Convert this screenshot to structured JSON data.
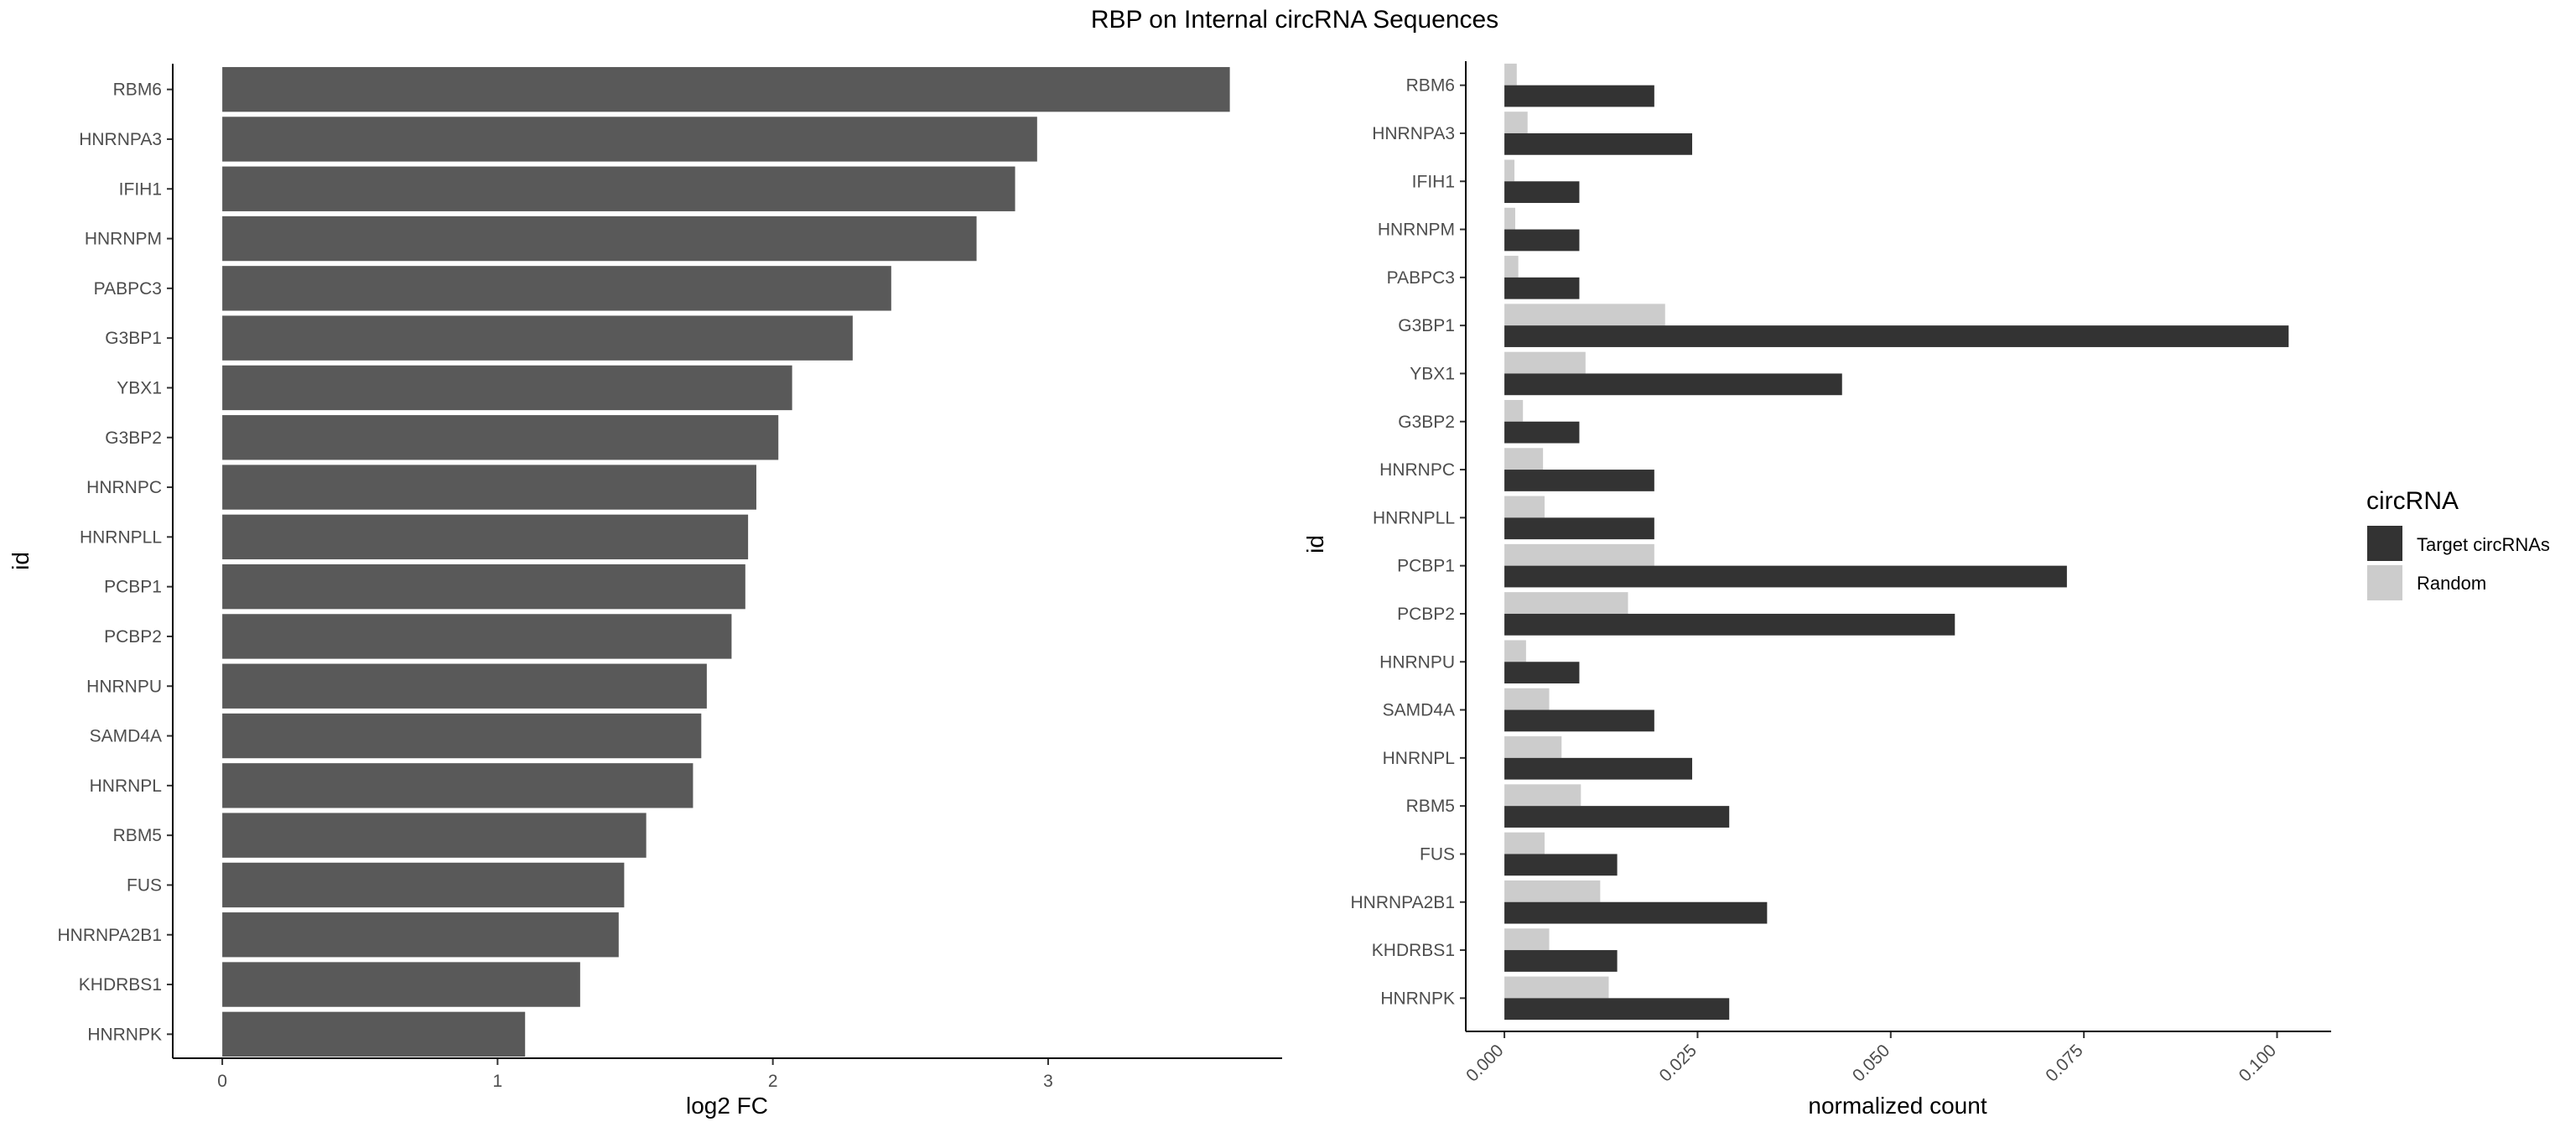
{
  "title": "RBP on Internal circRNA Sequences",
  "chart_data": [
    {
      "type": "bar",
      "orientation": "horizontal",
      "categories": [
        "RBM6",
        "HNRNPA3",
        "IFIH1",
        "HNRNPM",
        "PABPC3",
        "G3BP1",
        "YBX1",
        "G3BP2",
        "HNRNPC",
        "HNRNPLL",
        "PCBP1",
        "PCBP2",
        "HNRNPU",
        "SAMD4A",
        "HNRNPL",
        "RBM5",
        "FUS",
        "HNRNPA2B1",
        "KHDRBS1",
        "HNRNPK"
      ],
      "values": [
        3.66,
        2.96,
        2.88,
        2.74,
        2.43,
        2.29,
        2.07,
        2.02,
        1.94,
        1.91,
        1.9,
        1.85,
        1.76,
        1.74,
        1.71,
        1.54,
        1.46,
        1.44,
        1.3,
        1.1
      ],
      "xlabel": "log2 FC",
      "ylabel": "id",
      "xlim": [
        -0.18,
        3.85
      ],
      "xticks": [
        "0",
        "1",
        "2",
        "3"
      ],
      "bar_color": "#595959",
      "grid": false
    },
    {
      "type": "bar",
      "orientation": "horizontal",
      "grouped": true,
      "categories": [
        "RBM6",
        "HNRNPA3",
        "IFIH1",
        "HNRNPM",
        "PABPC3",
        "G3BP1",
        "YBX1",
        "G3BP2",
        "HNRNPC",
        "HNRNPLL",
        "PCBP1",
        "PCBP2",
        "HNRNPU",
        "SAMD4A",
        "HNRNPL",
        "RBM5",
        "FUS",
        "HNRNPA2B1",
        "KHDRBS1",
        "HNRNPK"
      ],
      "series": [
        {
          "name": "Random",
          "color": "#cccccc",
          "values": [
            0.0016,
            0.003,
            0.0013,
            0.0014,
            0.0018,
            0.0208,
            0.0105,
            0.0024,
            0.005,
            0.0052,
            0.0194,
            0.016,
            0.0028,
            0.0058,
            0.0074,
            0.0099,
            0.0052,
            0.0124,
            0.0058,
            0.0135
          ]
        },
        {
          "name": "Target circRNAs",
          "color": "#333333",
          "values": [
            0.0194,
            0.0243,
            0.0097,
            0.0097,
            0.0097,
            0.1015,
            0.0437,
            0.0097,
            0.0194,
            0.0194,
            0.0728,
            0.0583,
            0.0097,
            0.0194,
            0.0243,
            0.0291,
            0.0146,
            0.034,
            0.0146,
            0.0291
          ]
        }
      ],
      "xlabel": "normalized count",
      "ylabel": "id",
      "xlim": [
        -0.005,
        0.107
      ],
      "xticks": [
        "0.000",
        "0.025",
        "0.050",
        "0.075",
        "0.100"
      ],
      "legend": {
        "title": "circRNA",
        "position": "right",
        "items": [
          "Target circRNAs",
          "Random"
        ]
      },
      "grid": false
    }
  ]
}
